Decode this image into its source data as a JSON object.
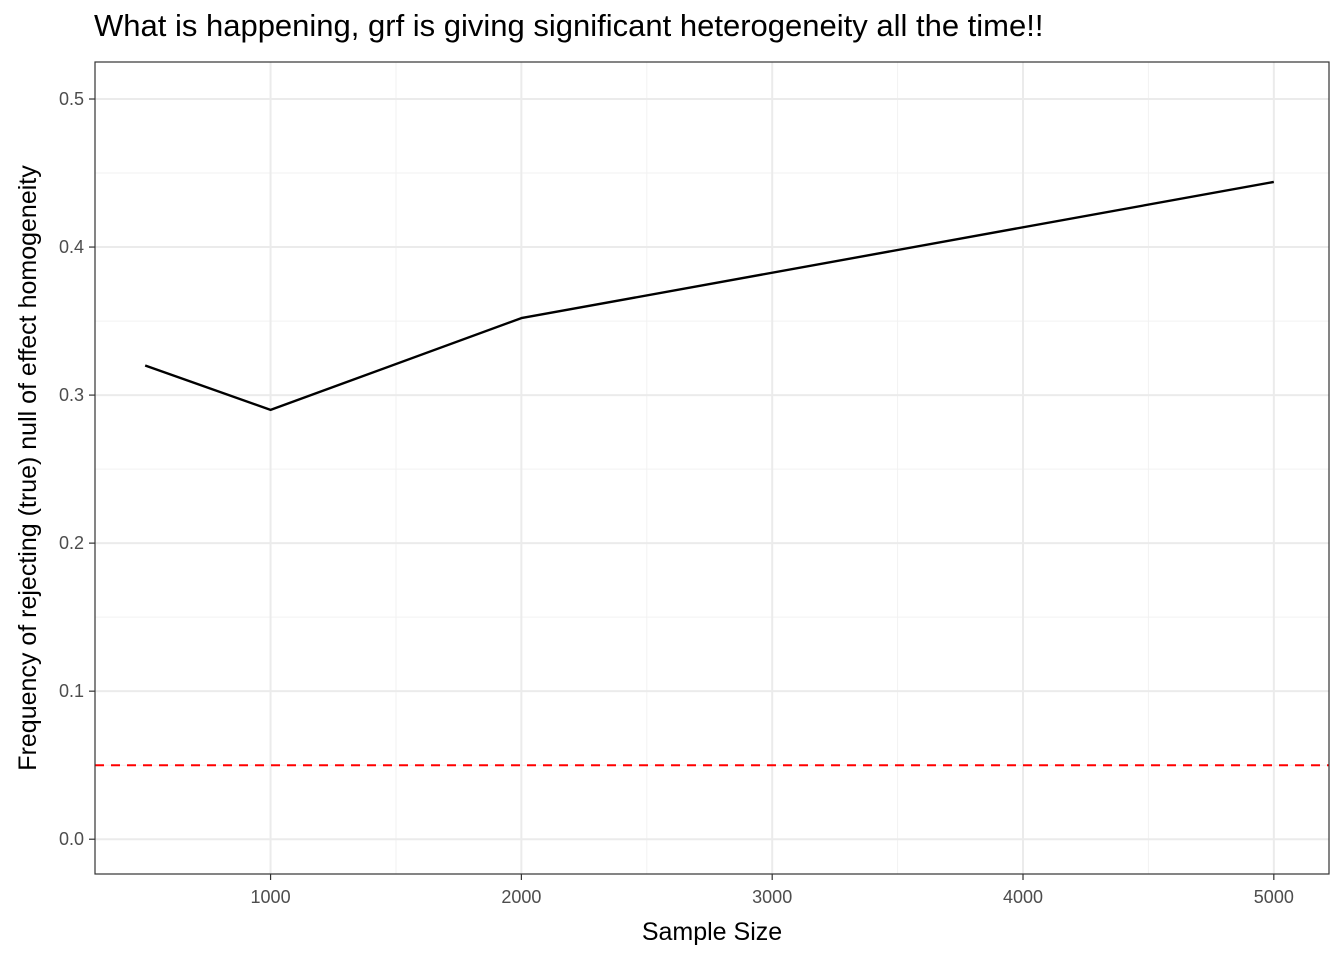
{
  "chart_data": {
    "type": "line",
    "title": "What is happening, grf is giving significant heterogeneity all the time!!",
    "xlabel": "Sample Size",
    "ylabel": "Frequency of rejecting (true) null of effect homogeneity",
    "xlim": [
      300,
      5220
    ],
    "ylim": [
      -0.0235,
      0.525
    ],
    "x_ticks": [
      1000,
      2000,
      3000,
      4000,
      5000
    ],
    "y_ticks": [
      0.0,
      0.1,
      0.2,
      0.3,
      0.4,
      0.5
    ],
    "x_tick_labels": [
      "1000",
      "2000",
      "3000",
      "4000",
      "5000"
    ],
    "y_tick_labels": [
      "0.0",
      "0.1",
      "0.2",
      "0.3",
      "0.4",
      "0.5"
    ],
    "grid": true,
    "series": [
      {
        "x": [
          500,
          1000,
          2000,
          5000
        ],
        "values": [
          0.32,
          0.29,
          0.352,
          0.444
        ],
        "color": "#000000"
      }
    ],
    "reference_line": {
      "y": 0.05,
      "color": "#ff0000",
      "style": "dashed"
    }
  }
}
